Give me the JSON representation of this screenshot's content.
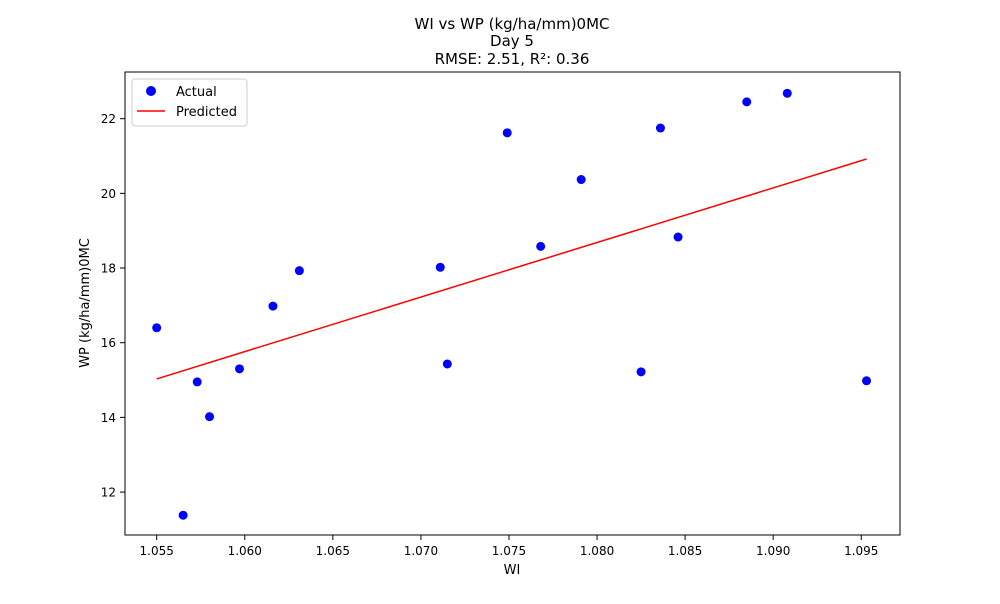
{
  "chart_data": {
    "type": "scatter",
    "title_lines": [
      "WI vs WP (kg/ha/mm)0MC",
      "Day 5",
      "RMSE: 2.51, R²: 0.36"
    ],
    "xlabel": "WI",
    "ylabel": "WP (kg/ha/mm)0MC",
    "xlim": [
      1.0532,
      1.0972
    ],
    "ylim": [
      10.85,
      23.25
    ],
    "xticks": [
      1.055,
      1.06,
      1.065,
      1.07,
      1.075,
      1.08,
      1.085,
      1.09,
      1.095
    ],
    "xtick_labels": [
      "1.055",
      "1.060",
      "1.065",
      "1.070",
      "1.075",
      "1.080",
      "1.085",
      "1.090",
      "1.095"
    ],
    "yticks": [
      12,
      14,
      16,
      18,
      20,
      22
    ],
    "ytick_labels": [
      "12",
      "14",
      "16",
      "18",
      "20",
      "22"
    ],
    "grid": false,
    "legend_position": "upper-left",
    "series": [
      {
        "name": "Actual",
        "kind": "scatter",
        "color": "#0000ff",
        "points": [
          {
            "x": 1.055,
            "y": 16.4
          },
          {
            "x": 1.0565,
            "y": 11.38
          },
          {
            "x": 1.0573,
            "y": 14.95
          },
          {
            "x": 1.058,
            "y": 14.02
          },
          {
            "x": 1.0597,
            "y": 15.3
          },
          {
            "x": 1.0616,
            "y": 16.98
          },
          {
            "x": 1.0631,
            "y": 17.93
          },
          {
            "x": 1.0711,
            "y": 18.02
          },
          {
            "x": 1.0715,
            "y": 15.43
          },
          {
            "x": 1.0749,
            "y": 21.62
          },
          {
            "x": 1.0768,
            "y": 18.58
          },
          {
            "x": 1.0791,
            "y": 20.37
          },
          {
            "x": 1.0825,
            "y": 15.22
          },
          {
            "x": 1.0836,
            "y": 21.75
          },
          {
            "x": 1.0846,
            "y": 18.83
          },
          {
            "x": 1.0885,
            "y": 22.45
          },
          {
            "x": 1.0908,
            "y": 22.68
          },
          {
            "x": 1.0953,
            "y": 14.98
          }
        ]
      },
      {
        "name": "Predicted",
        "kind": "line",
        "color": "#ff0000",
        "points": [
          {
            "x": 1.055,
            "y": 15.03
          },
          {
            "x": 1.0953,
            "y": 20.92
          }
        ]
      }
    ]
  }
}
